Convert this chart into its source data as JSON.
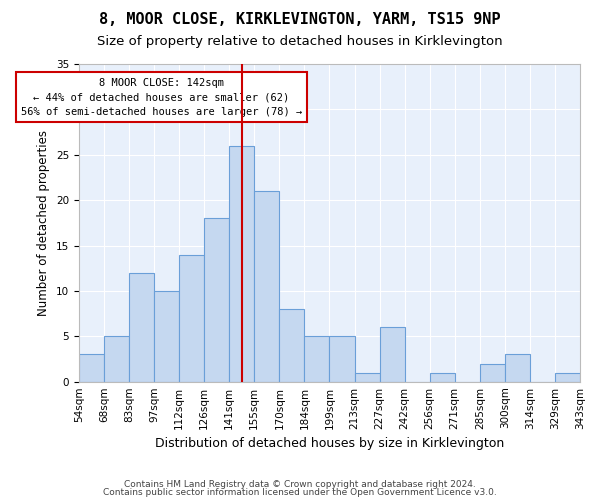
{
  "title1": "8, MOOR CLOSE, KIRKLEVINGTON, YARM, TS15 9NP",
  "title2": "Size of property relative to detached houses in Kirklevington",
  "xlabel": "Distribution of detached houses by size in Kirklevington",
  "ylabel": "Number of detached properties",
  "bin_labels": [
    "54sqm",
    "68sqm",
    "83sqm",
    "97sqm",
    "112sqm",
    "126sqm",
    "141sqm",
    "155sqm",
    "170sqm",
    "184sqm",
    "199sqm",
    "213sqm",
    "227sqm",
    "242sqm",
    "256sqm",
    "271sqm",
    "285sqm",
    "300sqm",
    "314sqm",
    "329sqm",
    "343sqm"
  ],
  "values": [
    3,
    5,
    12,
    10,
    14,
    18,
    26,
    21,
    8,
    5,
    5,
    1,
    6,
    0,
    1,
    0,
    2,
    3,
    0,
    1
  ],
  "bar_color": "#c5d8f0",
  "bar_edge_color": "#6a9fd8",
  "vline_x_index": 6,
  "vline_color": "#cc0000",
  "annotation_text": "8 MOOR CLOSE: 142sqm\n← 44% of detached houses are smaller (62)\n56% of semi-detached houses are larger (78) →",
  "annotation_box_color": "#ffffff",
  "annotation_box_edge": "#cc0000",
  "ylim": [
    0,
    35
  ],
  "yticks": [
    0,
    5,
    10,
    15,
    20,
    25,
    30,
    35
  ],
  "plot_bg_color": "#e8f0fb",
  "footer1": "Contains HM Land Registry data © Crown copyright and database right 2024.",
  "footer2": "Contains public sector information licensed under the Open Government Licence v3.0.",
  "title1_fontsize": 11,
  "title2_fontsize": 9.5,
  "xlabel_fontsize": 9,
  "ylabel_fontsize": 8.5,
  "tick_fontsize": 7.5,
  "footer_fontsize": 6.5
}
